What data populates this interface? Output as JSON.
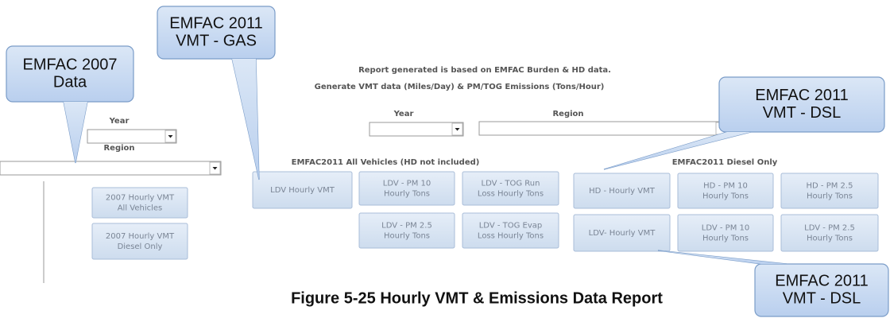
{
  "left_panel": {
    "year_label": "Year",
    "region_label": "Region",
    "buttons": [
      {
        "lines": [
          "2007 Hourly VMT",
          "All Vehicles"
        ]
      },
      {
        "lines": [
          "2007 Hourly VMT",
          "Diesel Only"
        ]
      }
    ]
  },
  "main_panel": {
    "header": "Report generated is based on EMFAC Burden & HD data.",
    "subheader": "Generate VMT data (Miles/Day) & PM/TOG Emissions (Tons/Hour)",
    "year_label": "Year",
    "region_label": "Region"
  },
  "gas_section": {
    "title": "EMFAC2011 All Vehicles (HD not included)",
    "buttons": [
      {
        "lines": [
          "LDV Hourly VMT"
        ]
      },
      {
        "lines": [
          "LDV - PM 10",
          "Hourly Tons"
        ]
      },
      {
        "lines": [
          "LDV - TOG Run",
          "Loss Hourly Tons"
        ]
      },
      {
        "lines": [
          "LDV - PM 2.5",
          "Hourly Tons"
        ]
      },
      {
        "lines": [
          "LDV - TOG Evap",
          "Loss Hourly Tons"
        ]
      }
    ]
  },
  "diesel_section": {
    "title": "EMFAC2011 Diesel Only",
    "buttons": [
      {
        "lines": [
          "HD - Hourly VMT"
        ]
      },
      {
        "lines": [
          "HD - PM 10",
          "Hourly Tons"
        ]
      },
      {
        "lines": [
          "HD - PM 2.5",
          "Hourly Tons"
        ]
      },
      {
        "lines": [
          "LDV- Hourly VMT"
        ]
      },
      {
        "lines": [
          "LDV - PM 10",
          "Hourly Tons"
        ]
      },
      {
        "lines": [
          "LDV - PM 2.5",
          "Hourly Tons"
        ]
      }
    ]
  },
  "callouts": [
    {
      "lines": [
        "EMFAC 2007",
        "Data"
      ]
    },
    {
      "lines": [
        "EMFAC 2011",
        "VMT - GAS"
      ]
    },
    {
      "lines": [
        "EMFAC 2011",
        "VMT - DSL"
      ]
    },
    {
      "lines": [
        "EMFAC 2011",
        "VMT - DSL"
      ]
    }
  ],
  "caption": "Figure 5-25 Hourly VMT & Emissions Data Report"
}
